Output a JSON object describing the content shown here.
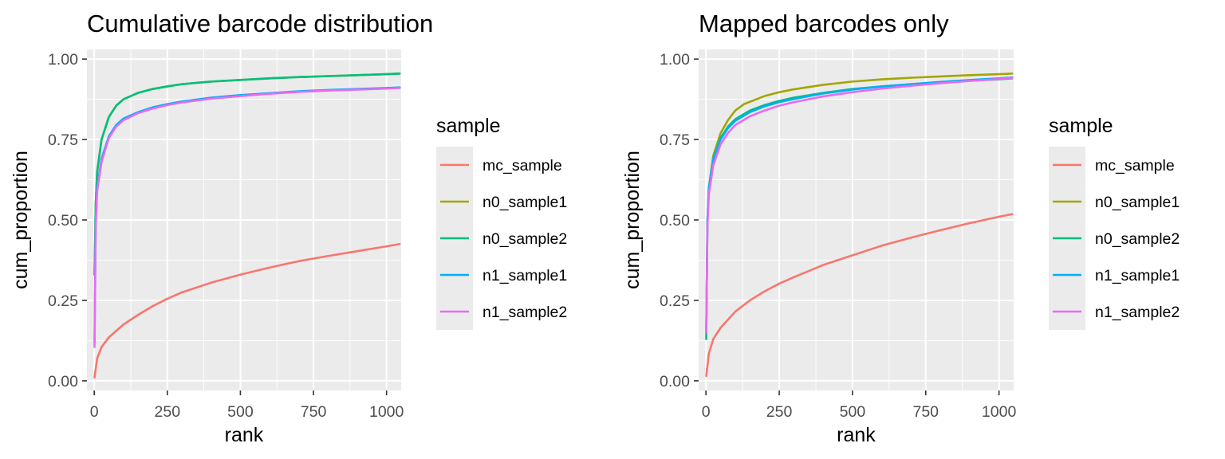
{
  "chart_data": [
    {
      "type": "line",
      "title": "Cumulative barcode distribution",
      "xlabel": "rank",
      "ylabel": "cum_proportion",
      "xlim": [
        -25,
        1050
      ],
      "ylim": [
        -0.03,
        1.03
      ],
      "x_ticks": [
        0,
        250,
        500,
        750,
        1000
      ],
      "x_tick_labels": [
        "0",
        "250",
        "500",
        "750",
        "1000"
      ],
      "y_ticks": [
        0,
        0.25,
        0.5,
        0.75,
        1.0
      ],
      "y_tick_labels": [
        "0.00",
        "0.25",
        "0.50",
        "0.75",
        "1.00"
      ],
      "grid": true,
      "legend_title": "sample",
      "legend_position": "right",
      "series": [
        {
          "name": "mc_sample",
          "color": "#F8766D",
          "x": [
            1,
            10,
            25,
            50,
            100,
            150,
            200,
            250,
            300,
            400,
            500,
            600,
            700,
            800,
            900,
            1000,
            1045
          ],
          "y": [
            0.01,
            0.07,
            0.105,
            0.135,
            0.175,
            0.205,
            0.232,
            0.255,
            0.275,
            0.305,
            0.33,
            0.352,
            0.372,
            0.388,
            0.403,
            0.418,
            0.425
          ]
        },
        {
          "name": "n0_sample1",
          "color": "#A3A500",
          "x": [
            1,
            5,
            10,
            25,
            50,
            75,
            100,
            150,
            200,
            250,
            300,
            400,
            500,
            600,
            700,
            800,
            900,
            1000,
            1045
          ],
          "y": [
            0.33,
            0.55,
            0.65,
            0.75,
            0.82,
            0.855,
            0.875,
            0.895,
            0.907,
            0.915,
            0.922,
            0.93,
            0.935,
            0.94,
            0.944,
            0.947,
            0.95,
            0.953,
            0.955
          ]
        },
        {
          "name": "n0_sample2",
          "color": "#00BF7D",
          "x": [
            1,
            5,
            10,
            25,
            50,
            75,
            100,
            150,
            200,
            250,
            300,
            400,
            500,
            600,
            700,
            800,
            900,
            1000,
            1045
          ],
          "y": [
            0.33,
            0.55,
            0.65,
            0.75,
            0.82,
            0.855,
            0.875,
            0.895,
            0.907,
            0.915,
            0.922,
            0.93,
            0.935,
            0.94,
            0.944,
            0.947,
            0.95,
            0.953,
            0.955
          ]
        },
        {
          "name": "n1_sample1",
          "color": "#00B0F6",
          "x": [
            1,
            5,
            10,
            25,
            50,
            75,
            100,
            150,
            200,
            250,
            300,
            400,
            500,
            600,
            700,
            800,
            900,
            1000,
            1045
          ],
          "y": [
            0.12,
            0.5,
            0.6,
            0.69,
            0.76,
            0.795,
            0.815,
            0.835,
            0.85,
            0.86,
            0.868,
            0.88,
            0.888,
            0.894,
            0.9,
            0.904,
            0.907,
            0.91,
            0.912
          ]
        },
        {
          "name": "n1_sample2",
          "color": "#E76BF3",
          "x": [
            1,
            5,
            10,
            25,
            50,
            75,
            100,
            150,
            200,
            250,
            300,
            400,
            500,
            600,
            700,
            800,
            900,
            1000,
            1045
          ],
          "y": [
            0.105,
            0.48,
            0.59,
            0.68,
            0.755,
            0.79,
            0.81,
            0.832,
            0.846,
            0.857,
            0.865,
            0.877,
            0.885,
            0.892,
            0.898,
            0.902,
            0.905,
            0.908,
            0.91
          ]
        }
      ]
    },
    {
      "type": "line",
      "title": "Mapped barcodes only",
      "xlabel": "rank",
      "ylabel": "cum_proportion",
      "xlim": [
        -25,
        1050
      ],
      "ylim": [
        -0.03,
        1.03
      ],
      "x_ticks": [
        0,
        250,
        500,
        750,
        1000
      ],
      "x_tick_labels": [
        "0",
        "250",
        "500",
        "750",
        "1000"
      ],
      "y_ticks": [
        0,
        0.25,
        0.5,
        0.75,
        1.0
      ],
      "y_tick_labels": [
        "0.00",
        "0.25",
        "0.50",
        "0.75",
        "1.00"
      ],
      "grid": true,
      "legend_title": "sample",
      "legend_position": "right",
      "series": [
        {
          "name": "mc_sample",
          "color": "#F8766D",
          "x": [
            1,
            10,
            25,
            50,
            100,
            150,
            200,
            250,
            300,
            400,
            500,
            600,
            700,
            800,
            900,
            1000,
            1045
          ],
          "y": [
            0.015,
            0.085,
            0.13,
            0.165,
            0.215,
            0.25,
            0.278,
            0.302,
            0.322,
            0.36,
            0.39,
            0.42,
            0.445,
            0.468,
            0.49,
            0.51,
            0.518
          ]
        },
        {
          "name": "n0_sample1",
          "color": "#A3A500",
          "x": [
            1,
            5,
            10,
            25,
            50,
            75,
            100,
            130,
            200,
            250,
            300,
            400,
            500,
            600,
            700,
            800,
            900,
            1000,
            1045
          ],
          "y": [
            0.16,
            0.5,
            0.6,
            0.7,
            0.77,
            0.81,
            0.84,
            0.86,
            0.885,
            0.897,
            0.906,
            0.92,
            0.93,
            0.937,
            0.942,
            0.946,
            0.95,
            0.953,
            0.955
          ]
        },
        {
          "name": "n0_sample2",
          "color": "#00BF7D",
          "x": [
            1,
            5,
            10,
            25,
            50,
            75,
            100,
            150,
            200,
            250,
            300,
            400,
            500,
            600,
            700,
            800,
            900,
            1000,
            1045
          ],
          "y": [
            0.13,
            0.5,
            0.6,
            0.69,
            0.755,
            0.79,
            0.813,
            0.84,
            0.857,
            0.87,
            0.88,
            0.895,
            0.907,
            0.915,
            0.922,
            0.928,
            0.933,
            0.937,
            0.94
          ]
        },
        {
          "name": "n1_sample1",
          "color": "#00B0F6",
          "x": [
            1,
            5,
            10,
            25,
            50,
            75,
            100,
            150,
            200,
            250,
            300,
            400,
            500,
            600,
            700,
            800,
            900,
            1000,
            1045
          ],
          "y": [
            0.15,
            0.5,
            0.6,
            0.69,
            0.75,
            0.785,
            0.808,
            0.835,
            0.853,
            0.866,
            0.876,
            0.893,
            0.905,
            0.915,
            0.922,
            0.929,
            0.935,
            0.94,
            0.943
          ]
        },
        {
          "name": "n1_sample2",
          "color": "#E76BF3",
          "x": [
            1,
            5,
            10,
            25,
            50,
            75,
            100,
            150,
            200,
            250,
            300,
            400,
            500,
            600,
            700,
            800,
            900,
            1000,
            1045
          ],
          "y": [
            0.15,
            0.48,
            0.58,
            0.67,
            0.735,
            0.77,
            0.795,
            0.822,
            0.84,
            0.855,
            0.866,
            0.884,
            0.897,
            0.908,
            0.917,
            0.925,
            0.932,
            0.938,
            0.942
          ]
        }
      ]
    }
  ]
}
